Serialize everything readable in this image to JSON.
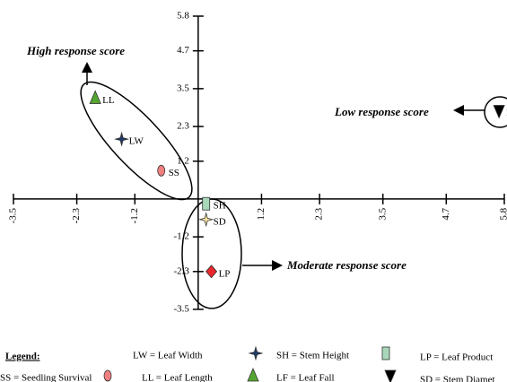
{
  "chart_data": {
    "type": "scatter",
    "xlim": [
      -3.5,
      5.8
    ],
    "ylim": [
      -3.5,
      5.8
    ],
    "xticks": [
      -3.5,
      -2.3,
      -1.2,
      1.2,
      2.3,
      3.5,
      4.7,
      5.8
    ],
    "yticks": [
      5.8,
      4.7,
      3.5,
      2.3,
      1.2,
      -1.2,
      -2.3,
      -3.5
    ],
    "series": [
      {
        "name": "LL",
        "marker": "triangle-up",
        "color": "#55a630",
        "x": [
          -1.95
        ],
        "y": [
          3.2
        ]
      },
      {
        "name": "LW",
        "marker": "cross",
        "color": "#1f3a68",
        "x": [
          -1.45
        ],
        "y": [
          1.9
        ]
      },
      {
        "name": "SS",
        "marker": "ellipse",
        "color": "#f08080",
        "x": [
          -0.7
        ],
        "y": [
          0.9
        ]
      },
      {
        "name": "SH",
        "marker": "rect",
        "color": "#a8d8b9",
        "x": [
          0.15
        ],
        "y": [
          -0.15
        ]
      },
      {
        "name": "SD",
        "marker": "star",
        "color": "#f5e6a0",
        "x": [
          0.15
        ],
        "y": [
          -0.65
        ]
      },
      {
        "name": "LP",
        "marker": "diamond",
        "color": "#e8262b",
        "x": [
          0.25
        ],
        "y": [
          -2.3
        ]
      },
      {
        "name": "LF",
        "marker": "triangle-down",
        "color": "#000000",
        "x": [
          5.7
        ],
        "y": [
          2.8
        ]
      }
    ],
    "annotations": [
      "High response score",
      "Low response score",
      "Moderate response score"
    ],
    "legend_title": "Legend:",
    "legend": [
      {
        "text": "LW = Leaf Width",
        "marker": "cross",
        "color": "#1f3a68"
      },
      {
        "text": "SH = Stem Height",
        "marker": "rect",
        "color": "#a8d8b9"
      },
      {
        "text": "LP = Leaf Product"
      },
      {
        "text": "SS = Seedling Survival",
        "marker": "ellipse",
        "color": "#f08080"
      },
      {
        "text": "LL = Leaf Length",
        "marker": "triangle-up",
        "color": "#55a630"
      },
      {
        "text": "LF = Leaf Fall",
        "marker": "triangle-down",
        "color": "#000000"
      },
      {
        "text": "SD = Stem Diamet"
      }
    ]
  }
}
